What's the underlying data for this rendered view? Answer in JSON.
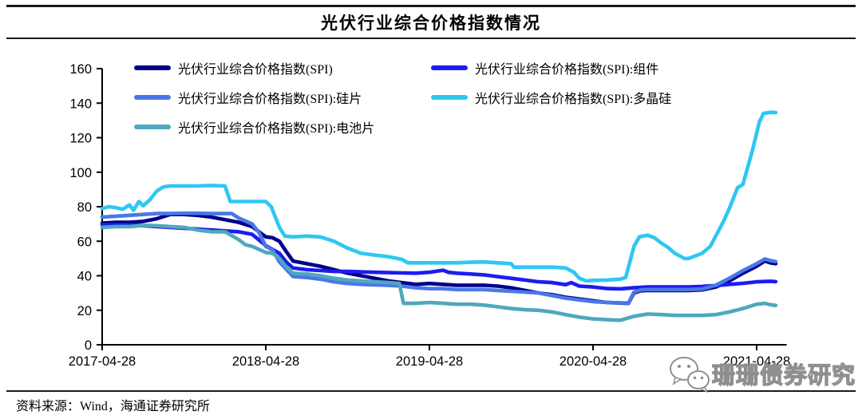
{
  "header": {
    "title": "光伏行业综合价格指数情况"
  },
  "footer": {
    "source": "资料来源：Wind，海通证券研究所"
  },
  "watermark": {
    "name": "珊珊债券研究",
    "icon": "wechat-icon"
  },
  "chart_data": {
    "type": "line",
    "title": "光伏行业综合价格指数情况",
    "xlabel": "",
    "ylabel": "",
    "ylim": [
      0,
      160
    ],
    "y_ticks": [
      0,
      20,
      40,
      60,
      80,
      100,
      120,
      140,
      160
    ],
    "x_unit": "months since 2017-04-28",
    "x_axis_span_months": 50.2,
    "x_ticks": [
      {
        "t": 0,
        "label": "2017-04-28"
      },
      {
        "t": 12,
        "label": "2018-04-28"
      },
      {
        "t": 24,
        "label": "2019-04-28"
      },
      {
        "t": 36,
        "label": "2020-04-28"
      },
      {
        "t": 48,
        "label": "2021-04-28"
      }
    ],
    "grid": false,
    "legend_position": "top-left, 2 columns",
    "series": [
      {
        "name": "光伏行业综合价格指数(SPI)",
        "color": "#000089",
        "points": [
          [
            0,
            70.5
          ],
          [
            1,
            71
          ],
          [
            2,
            71
          ],
          [
            3,
            71.5
          ],
          [
            4,
            73
          ],
          [
            5,
            75.5
          ],
          [
            6,
            75.5
          ],
          [
            7,
            75
          ],
          [
            8,
            74
          ],
          [
            9,
            72.5
          ],
          [
            10,
            71
          ],
          [
            11,
            68.5
          ],
          [
            11.5,
            65.5
          ],
          [
            12,
            62.5
          ],
          [
            12.5,
            62
          ],
          [
            13,
            60
          ],
          [
            13.5,
            54
          ],
          [
            14,
            48.5
          ],
          [
            15,
            47
          ],
          [
            16,
            45.5
          ],
          [
            17,
            43.5
          ],
          [
            18,
            41.5
          ],
          [
            19,
            40
          ],
          [
            20,
            38.5
          ],
          [
            21,
            37
          ],
          [
            22,
            36
          ],
          [
            23,
            35
          ],
          [
            24,
            35.5
          ],
          [
            25,
            35
          ],
          [
            26,
            34.5
          ],
          [
            27,
            34.5
          ],
          [
            28,
            34.5
          ],
          [
            29,
            34
          ],
          [
            30,
            33
          ],
          [
            31,
            31.5
          ],
          [
            32,
            30
          ],
          [
            33,
            29
          ],
          [
            34,
            27.5
          ],
          [
            35,
            26.5
          ],
          [
            36,
            25.5
          ],
          [
            37,
            24.5
          ],
          [
            38,
            24.2
          ],
          [
            38.6,
            24
          ],
          [
            39,
            30
          ],
          [
            39.5,
            31.3
          ],
          [
            40,
            31.5
          ],
          [
            41,
            31.5
          ],
          [
            42,
            31.5
          ],
          [
            43,
            31.5
          ],
          [
            44,
            31.8
          ],
          [
            45,
            33.5
          ],
          [
            46,
            37
          ],
          [
            47,
            41.5
          ],
          [
            48,
            45.5
          ],
          [
            48.6,
            48.6
          ],
          [
            49,
            47.5
          ],
          [
            49.4,
            47
          ]
        ]
      },
      {
        "name": "光伏行业综合价格指数(SPI):组件",
        "color": "#1C1CF0",
        "points": [
          [
            0,
            69.5
          ],
          [
            1,
            69.5
          ],
          [
            2,
            69.5
          ],
          [
            3,
            69
          ],
          [
            4,
            68.5
          ],
          [
            5,
            68
          ],
          [
            6,
            67.5
          ],
          [
            7,
            67
          ],
          [
            8,
            66.5
          ],
          [
            9,
            66
          ],
          [
            10,
            65.5
          ],
          [
            11,
            64
          ],
          [
            12,
            57.5
          ],
          [
            13,
            53
          ],
          [
            13.5,
            48
          ],
          [
            14,
            44.5
          ],
          [
            15,
            43.5
          ],
          [
            16,
            43
          ],
          [
            17,
            42.5
          ],
          [
            18,
            42.5
          ],
          [
            19,
            42.2
          ],
          [
            20,
            42
          ],
          [
            21,
            41.8
          ],
          [
            22,
            41.6
          ],
          [
            23,
            41.5
          ],
          [
            24,
            42
          ],
          [
            25,
            43.2
          ],
          [
            25.4,
            42
          ],
          [
            26,
            41.5
          ],
          [
            27,
            41
          ],
          [
            28,
            40.5
          ],
          [
            29,
            39.5
          ],
          [
            30,
            38.5
          ],
          [
            31,
            37.5
          ],
          [
            32,
            36.5
          ],
          [
            33,
            36
          ],
          [
            34,
            34.8
          ],
          [
            34.4,
            36
          ],
          [
            35,
            34
          ],
          [
            36,
            33.5
          ],
          [
            37,
            32.6
          ],
          [
            38,
            32.4
          ],
          [
            39,
            33
          ],
          [
            40,
            33.5
          ],
          [
            41,
            33.5
          ],
          [
            42,
            33.5
          ],
          [
            43,
            33.5
          ],
          [
            44,
            33.8
          ],
          [
            45,
            34.3
          ],
          [
            46,
            35
          ],
          [
            47,
            35.6
          ],
          [
            48,
            36.5
          ],
          [
            49,
            36.8
          ],
          [
            49.4,
            36.6
          ]
        ]
      },
      {
        "name": "光伏行业综合价格指数(SPI):硅片",
        "color": "#4A77E8",
        "points": [
          [
            0,
            74
          ],
          [
            1,
            74.5
          ],
          [
            2,
            75
          ],
          [
            3,
            75.5
          ],
          [
            4,
            76
          ],
          [
            5,
            76
          ],
          [
            6,
            76.2
          ],
          [
            7,
            76.2
          ],
          [
            8,
            76
          ],
          [
            9,
            76
          ],
          [
            9.5,
            76
          ],
          [
            10,
            73.5
          ],
          [
            11,
            70
          ],
          [
            11.5,
            65
          ],
          [
            12,
            57
          ],
          [
            12.5,
            55
          ],
          [
            13,
            48
          ],
          [
            14,
            39.5
          ],
          [
            15,
            39
          ],
          [
            16,
            38
          ],
          [
            17,
            36.5
          ],
          [
            18,
            35.5
          ],
          [
            19,
            35
          ],
          [
            20,
            34.7
          ],
          [
            21,
            34.5
          ],
          [
            22,
            34
          ],
          [
            23,
            33
          ],
          [
            24,
            32.5
          ],
          [
            25,
            32.5
          ],
          [
            26,
            32
          ],
          [
            27,
            32
          ],
          [
            28,
            32
          ],
          [
            29,
            31.5
          ],
          [
            30,
            31
          ],
          [
            31,
            30.5
          ],
          [
            32,
            30
          ],
          [
            33,
            28.5
          ],
          [
            34,
            27
          ],
          [
            35,
            26
          ],
          [
            36,
            25
          ],
          [
            37,
            24.5
          ],
          [
            38,
            24.3
          ],
          [
            38.6,
            24.2
          ],
          [
            39,
            30.5
          ],
          [
            39.5,
            31.8
          ],
          [
            40,
            32
          ],
          [
            41,
            32
          ],
          [
            42,
            32
          ],
          [
            43,
            32
          ],
          [
            44,
            32.3
          ],
          [
            45,
            34.5
          ],
          [
            46,
            38.5
          ],
          [
            47,
            43
          ],
          [
            48,
            47
          ],
          [
            48.6,
            49.7
          ],
          [
            49,
            48.8
          ],
          [
            49.4,
            48.2
          ]
        ]
      },
      {
        "name": "光伏行业综合价格指数(SPI):多晶硅",
        "color": "#2FC7F2",
        "points": [
          [
            0,
            79
          ],
          [
            0.5,
            80
          ],
          [
            1,
            79.5
          ],
          [
            1.5,
            78.5
          ],
          [
            2,
            81
          ],
          [
            2.3,
            78
          ],
          [
            2.7,
            83
          ],
          [
            3,
            80.5
          ],
          [
            3.5,
            84
          ],
          [
            4,
            89
          ],
          [
            4.5,
            91.5
          ],
          [
            5,
            92
          ],
          [
            6,
            92
          ],
          [
            7,
            92
          ],
          [
            8,
            92.3
          ],
          [
            9,
            92
          ],
          [
            9.4,
            83
          ],
          [
            10,
            83
          ],
          [
            11,
            83
          ],
          [
            12,
            83
          ],
          [
            12.4,
            80
          ],
          [
            13,
            68
          ],
          [
            13.4,
            63
          ],
          [
            14,
            62.5
          ],
          [
            15,
            63
          ],
          [
            16,
            62.5
          ],
          [
            17,
            60
          ],
          [
            18,
            56
          ],
          [
            19,
            53
          ],
          [
            20,
            52
          ],
          [
            21,
            51
          ],
          [
            22,
            49.5
          ],
          [
            22.4,
            47.5
          ],
          [
            23,
            47.5
          ],
          [
            24,
            47.5
          ],
          [
            25,
            47.5
          ],
          [
            26,
            47.5
          ],
          [
            27,
            47.8
          ],
          [
            28,
            48
          ],
          [
            29,
            47.5
          ],
          [
            30,
            47
          ],
          [
            30.2,
            45
          ],
          [
            31,
            45
          ],
          [
            32,
            45
          ],
          [
            33,
            45
          ],
          [
            34,
            44.5
          ],
          [
            34.6,
            42
          ],
          [
            35,
            38.5
          ],
          [
            35.5,
            37
          ],
          [
            36,
            37.3
          ],
          [
            37,
            37.5
          ],
          [
            38,
            38
          ],
          [
            38.4,
            39
          ],
          [
            39,
            57
          ],
          [
            39.4,
            62.5
          ],
          [
            40,
            63.5
          ],
          [
            40.5,
            62
          ],
          [
            41,
            59
          ],
          [
            41.5,
            56.4
          ],
          [
            42,
            53
          ],
          [
            42.7,
            50
          ],
          [
            43,
            50
          ],
          [
            44,
            53
          ],
          [
            44.6,
            57
          ],
          [
            45,
            63
          ],
          [
            45.6,
            72
          ],
          [
            46,
            79
          ],
          [
            46.6,
            91
          ],
          [
            47,
            93
          ],
          [
            47.7,
            113
          ],
          [
            48.2,
            129
          ],
          [
            48.5,
            134
          ],
          [
            49,
            134.7
          ],
          [
            49.4,
            134.5
          ]
        ]
      },
      {
        "name": "光伏行业综合价格指数(SPI):电池片",
        "color": "#4FA8BC",
        "points": [
          [
            0,
            68
          ],
          [
            1,
            68.5
          ],
          [
            2,
            68.5
          ],
          [
            3,
            69.2
          ],
          [
            4,
            69
          ],
          [
            5,
            68.5
          ],
          [
            6,
            68
          ],
          [
            7,
            66.5
          ],
          [
            8,
            65.5
          ],
          [
            9,
            65.5
          ],
          [
            10,
            61
          ],
          [
            10.5,
            58
          ],
          [
            11,
            57
          ],
          [
            12,
            53.5
          ],
          [
            12.5,
            53
          ],
          [
            13,
            50
          ],
          [
            13.5,
            45
          ],
          [
            14,
            41.5
          ],
          [
            15,
            41
          ],
          [
            16,
            40
          ],
          [
            17,
            38.5
          ],
          [
            18,
            37.5
          ],
          [
            19,
            37
          ],
          [
            20,
            36.5
          ],
          [
            21,
            36
          ],
          [
            21.8,
            35.5
          ],
          [
            22.1,
            24
          ],
          [
            23,
            24
          ],
          [
            24,
            24.5
          ],
          [
            25,
            24
          ],
          [
            26,
            23.5
          ],
          [
            27,
            23.5
          ],
          [
            28,
            23
          ],
          [
            29,
            22
          ],
          [
            30,
            21
          ],
          [
            31,
            20.3
          ],
          [
            32,
            20
          ],
          [
            33,
            19
          ],
          [
            34,
            17.5
          ],
          [
            35,
            16
          ],
          [
            36,
            15
          ],
          [
            37,
            14.5
          ],
          [
            38,
            14.2
          ],
          [
            39,
            16.5
          ],
          [
            40,
            17.8
          ],
          [
            41,
            17.5
          ],
          [
            42,
            17
          ],
          [
            43,
            17
          ],
          [
            44,
            17
          ],
          [
            45,
            17.5
          ],
          [
            46,
            19
          ],
          [
            47,
            21
          ],
          [
            48,
            23.5
          ],
          [
            48.6,
            24
          ],
          [
            49,
            23.2
          ],
          [
            49.4,
            22.8
          ]
        ]
      }
    ]
  }
}
